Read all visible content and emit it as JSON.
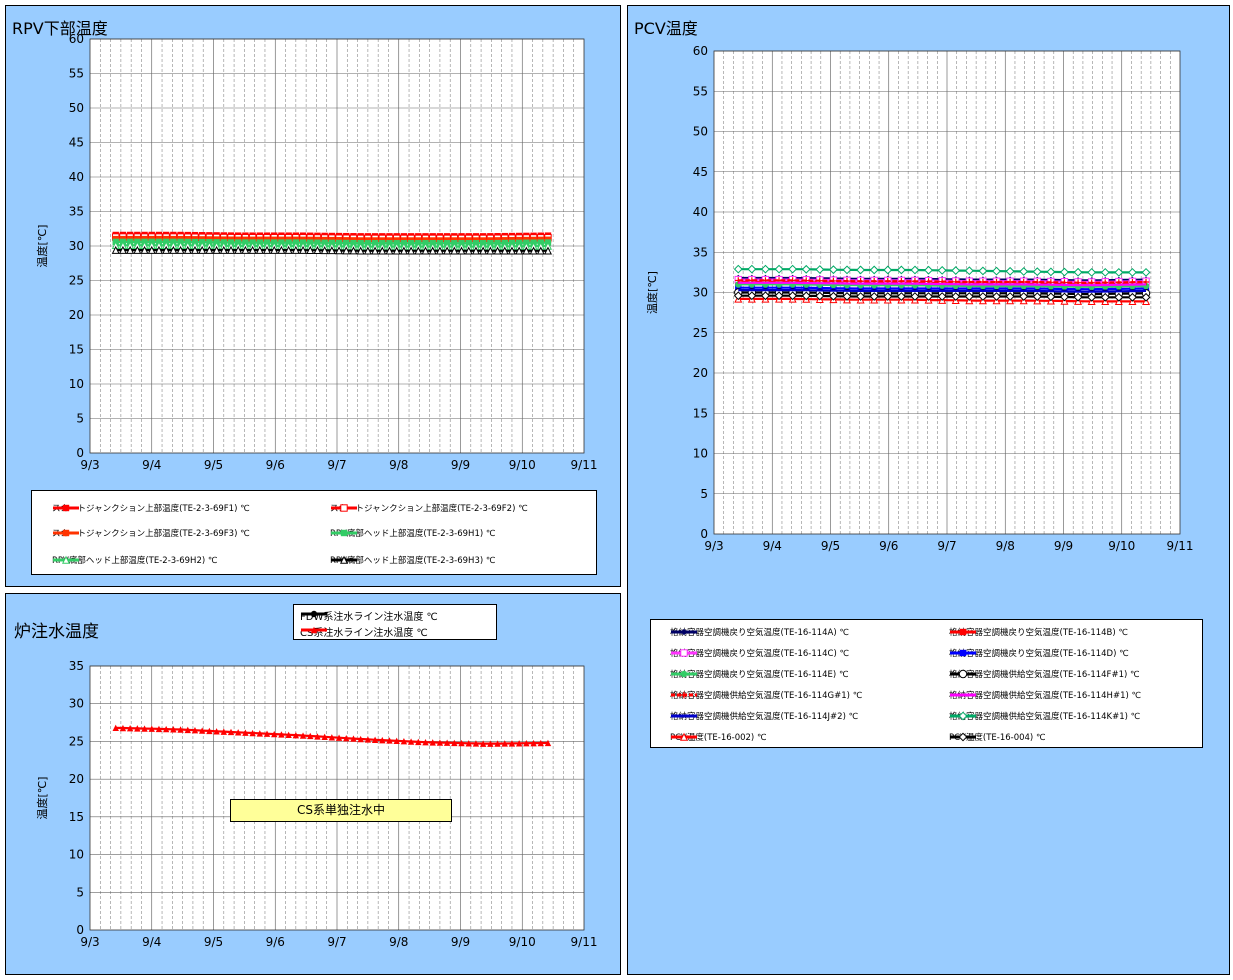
{
  "chart_data": [
    {
      "id": "rpv",
      "type": "line",
      "title": "RPV下部温度",
      "ylabel": "温度[℃]",
      "xlabel": "",
      "x_ticks": [
        "9/3",
        "9/4",
        "9/5",
        "9/6",
        "9/7",
        "9/8",
        "9/9",
        "9/10",
        "9/11"
      ],
      "xlim": [
        "9/3",
        "9/11"
      ],
      "ylim": [
        0,
        60
      ],
      "y_ticks": [
        0,
        5,
        10,
        15,
        20,
        25,
        30,
        35,
        40,
        45,
        50,
        55,
        60
      ],
      "grid": true,
      "legend_position": "bottom",
      "series": [
        {
          "name": "スカートジャンクション上部温度(TE-2-3-69F1) ℃",
          "color": "#ff0000",
          "marker": "square-filled",
          "x_start": "9/3 10:00",
          "x_end": "9/10 10:00",
          "points": [
            31.6,
            31.6,
            31.5,
            31.5,
            31.4,
            31.4,
            31.4,
            31.5
          ]
        },
        {
          "name": "スカートジャンクション上部温度(TE-2-3-69F2) ℃",
          "color": "#ff0000",
          "marker": "square-open",
          "x_start": "9/3 10:00",
          "x_end": "9/10 10:00",
          "points": [
            31.3,
            31.3,
            31.2,
            31.2,
            31.1,
            31.1,
            31.1,
            31.2
          ]
        },
        {
          "name": "スカートジャンクション上部温度(TE-2-3-69F3) ℃",
          "color": "#ff3300",
          "marker": "square-filled",
          "x_start": "9/3 10:00",
          "x_end": "9/10 10:00",
          "points": [
            31.0,
            31.0,
            30.9,
            30.9,
            30.8,
            30.8,
            30.8,
            30.9
          ]
        },
        {
          "name": "RPV底部ヘッド上部温度(TE-2-3-69H1) ℃",
          "color": "#33cc66",
          "marker": "square-filled",
          "x_start": "9/3 10:00",
          "x_end": "9/10 10:00",
          "points": [
            30.6,
            30.6,
            30.5,
            30.5,
            30.4,
            30.4,
            30.4,
            30.5
          ]
        },
        {
          "name": "RPV底部ヘッド上部温度(TE-2-3-69H2) ℃",
          "color": "#33cc66",
          "marker": "triangle-open",
          "x_start": "9/3 10:00",
          "x_end": "9/10 10:00",
          "points": [
            30.1,
            30.1,
            30.0,
            30.0,
            29.9,
            29.9,
            29.9,
            30.0
          ]
        },
        {
          "name": "RPV底部ヘッド上部温度(TE-2-3-69H3) ℃",
          "color": "#000000",
          "marker": "triangle-open",
          "x_start": "9/3 10:00",
          "x_end": "9/10 10:00",
          "points": [
            29.4,
            29.4,
            29.4,
            29.4,
            29.3,
            29.3,
            29.3,
            29.3
          ]
        }
      ]
    },
    {
      "id": "pcv",
      "type": "line",
      "title": "PCV温度",
      "ylabel": "温度[℃]",
      "xlabel": "",
      "x_ticks": [
        "9/3",
        "9/4",
        "9/5",
        "9/6",
        "9/7",
        "9/8",
        "9/9",
        "9/10",
        "9/11"
      ],
      "xlim": [
        "9/3",
        "9/11"
      ],
      "ylim": [
        0,
        60
      ],
      "y_ticks": [
        0,
        5,
        10,
        15,
        20,
        25,
        30,
        35,
        40,
        45,
        50,
        55,
        60
      ],
      "grid": true,
      "legend_position": "bottom",
      "series": [
        {
          "name": "格納容器空調機戻り空気温度(TE-16-114A) ℃",
          "color": "#000066",
          "marker": "diamond-filled",
          "x_start": "9/3 10:00",
          "x_end": "9/10 10:00",
          "points": [
            31.8,
            31.8,
            31.7,
            31.7,
            31.6,
            31.6,
            31.5,
            31.6
          ]
        },
        {
          "name": "格納容器空調機戻り空気温度(TE-16-114B) ℃",
          "color": "#ff0000",
          "marker": "square-filled",
          "x_start": "9/3 10:00",
          "x_end": "9/10 10:00",
          "points": [
            31.3,
            31.3,
            31.2,
            31.2,
            31.1,
            31.1,
            31.0,
            31.1
          ]
        },
        {
          "name": "格納容器空調機戻り空気温度(TE-16-114C) ℃",
          "color": "#ff33ff",
          "marker": "square-open",
          "x_start": "9/3 10:00",
          "x_end": "9/10 10:00",
          "points": [
            31.6,
            31.6,
            31.5,
            31.5,
            31.4,
            31.4,
            31.3,
            31.4
          ]
        },
        {
          "name": "格納容器空調機戻り空気温度(TE-16-114D) ℃",
          "color": "#0000ff",
          "marker": "square-filled",
          "x_start": "9/3 10:00",
          "x_end": "9/10 10:00",
          "points": [
            30.6,
            30.6,
            30.5,
            30.5,
            30.5,
            30.5,
            30.4,
            30.5
          ]
        },
        {
          "name": "格納容器空調機戻り空気温度(TE-16-114E) ℃",
          "color": "#33cc66",
          "marker": "circle-filled",
          "x_start": "9/3 10:00",
          "x_end": "9/10 10:00",
          "points": [
            31.0,
            31.0,
            30.9,
            30.9,
            30.8,
            30.8,
            30.7,
            30.8
          ]
        },
        {
          "name": "格納容器空調機供給空気温度(TE-16-114F#1) ℃",
          "color": "#000000",
          "marker": "circle-open",
          "x_start": "9/3 10:00",
          "x_end": "9/10 10:00",
          "points": [
            30.0,
            30.0,
            29.9,
            29.9,
            29.9,
            29.9,
            29.8,
            29.9
          ]
        },
        {
          "name": "格納容器空調機供給空気温度(TE-16-114G#1) ℃",
          "color": "#ff0000",
          "marker": "plus",
          "dashed": true,
          "x_start": "9/3 10:00",
          "x_end": "9/10 10:00",
          "points": [
            31.5,
            31.5,
            31.4,
            31.4,
            31.3,
            31.3,
            31.2,
            31.3
          ]
        },
        {
          "name": "格納容器空調機供給空気温度(TE-16-114H#1) ℃",
          "color": "#ff00ff",
          "marker": "none",
          "x_start": "9/3 10:00",
          "x_end": "9/10 10:00",
          "points": [
            31.2,
            31.2,
            31.1,
            31.1,
            31.0,
            31.0,
            30.9,
            31.0
          ]
        },
        {
          "name": "格納容器空調機供給空気温度(TE-16-114J#2) ℃",
          "color": "#0000cc",
          "marker": "none",
          "x_start": "9/3 10:00",
          "x_end": "9/10 10:00",
          "points": [
            30.3,
            30.3,
            30.2,
            30.2,
            30.2,
            30.2,
            30.1,
            30.2
          ]
        },
        {
          "name": "格納容器空調機供給空気温度(TE-16-114K#1) ℃",
          "color": "#00aa66",
          "marker": "diamond-open",
          "x_start": "9/3 10:00",
          "x_end": "9/10 10:00",
          "points": [
            32.9,
            32.9,
            32.8,
            32.8,
            32.7,
            32.6,
            32.5,
            32.5
          ]
        },
        {
          "name": "PCV温度(TE-16-002) ℃",
          "color": "#ff0000",
          "marker": "triangle-open",
          "x_start": "9/3 10:00",
          "x_end": "9/10 10:00",
          "points": [
            29.2,
            29.2,
            29.1,
            29.1,
            29.0,
            29.0,
            28.9,
            28.9
          ]
        },
        {
          "name": "PCV温度(TE-16-004) ℃",
          "color": "#000000",
          "marker": "diamond-open",
          "x_start": "9/3 10:00",
          "x_end": "9/10 10:00",
          "points": [
            29.6,
            29.6,
            29.5,
            29.5,
            29.5,
            29.5,
            29.4,
            29.4
          ]
        }
      ]
    },
    {
      "id": "inj",
      "type": "line",
      "title": "炉注水温度",
      "ylabel": "温度[℃]",
      "xlabel": "",
      "x_ticks": [
        "9/3",
        "9/4",
        "9/5",
        "9/6",
        "9/7",
        "9/8",
        "9/9",
        "9/10",
        "9/11"
      ],
      "xlim": [
        "9/3",
        "9/11"
      ],
      "ylim": [
        0,
        35
      ],
      "y_ticks": [
        0,
        5,
        10,
        15,
        20,
        25,
        30,
        35
      ],
      "grid": true,
      "legend_position": "top",
      "annotation": "CS系単独注水中",
      "series": [
        {
          "name": "FDW系注水ライン注水温度 ℃",
          "color": "#000000",
          "marker": "circle-filled",
          "points": []
        },
        {
          "name": "CS系注水ライン注水温度 ℃",
          "color": "#ff0000",
          "marker": "triangle-filled",
          "x_start": "9/3 10:00",
          "x_end": "9/10 10:00",
          "points": [
            26.8,
            26.6,
            26.2,
            25.8,
            25.3,
            24.9,
            24.7,
            24.8
          ]
        }
      ]
    }
  ]
}
